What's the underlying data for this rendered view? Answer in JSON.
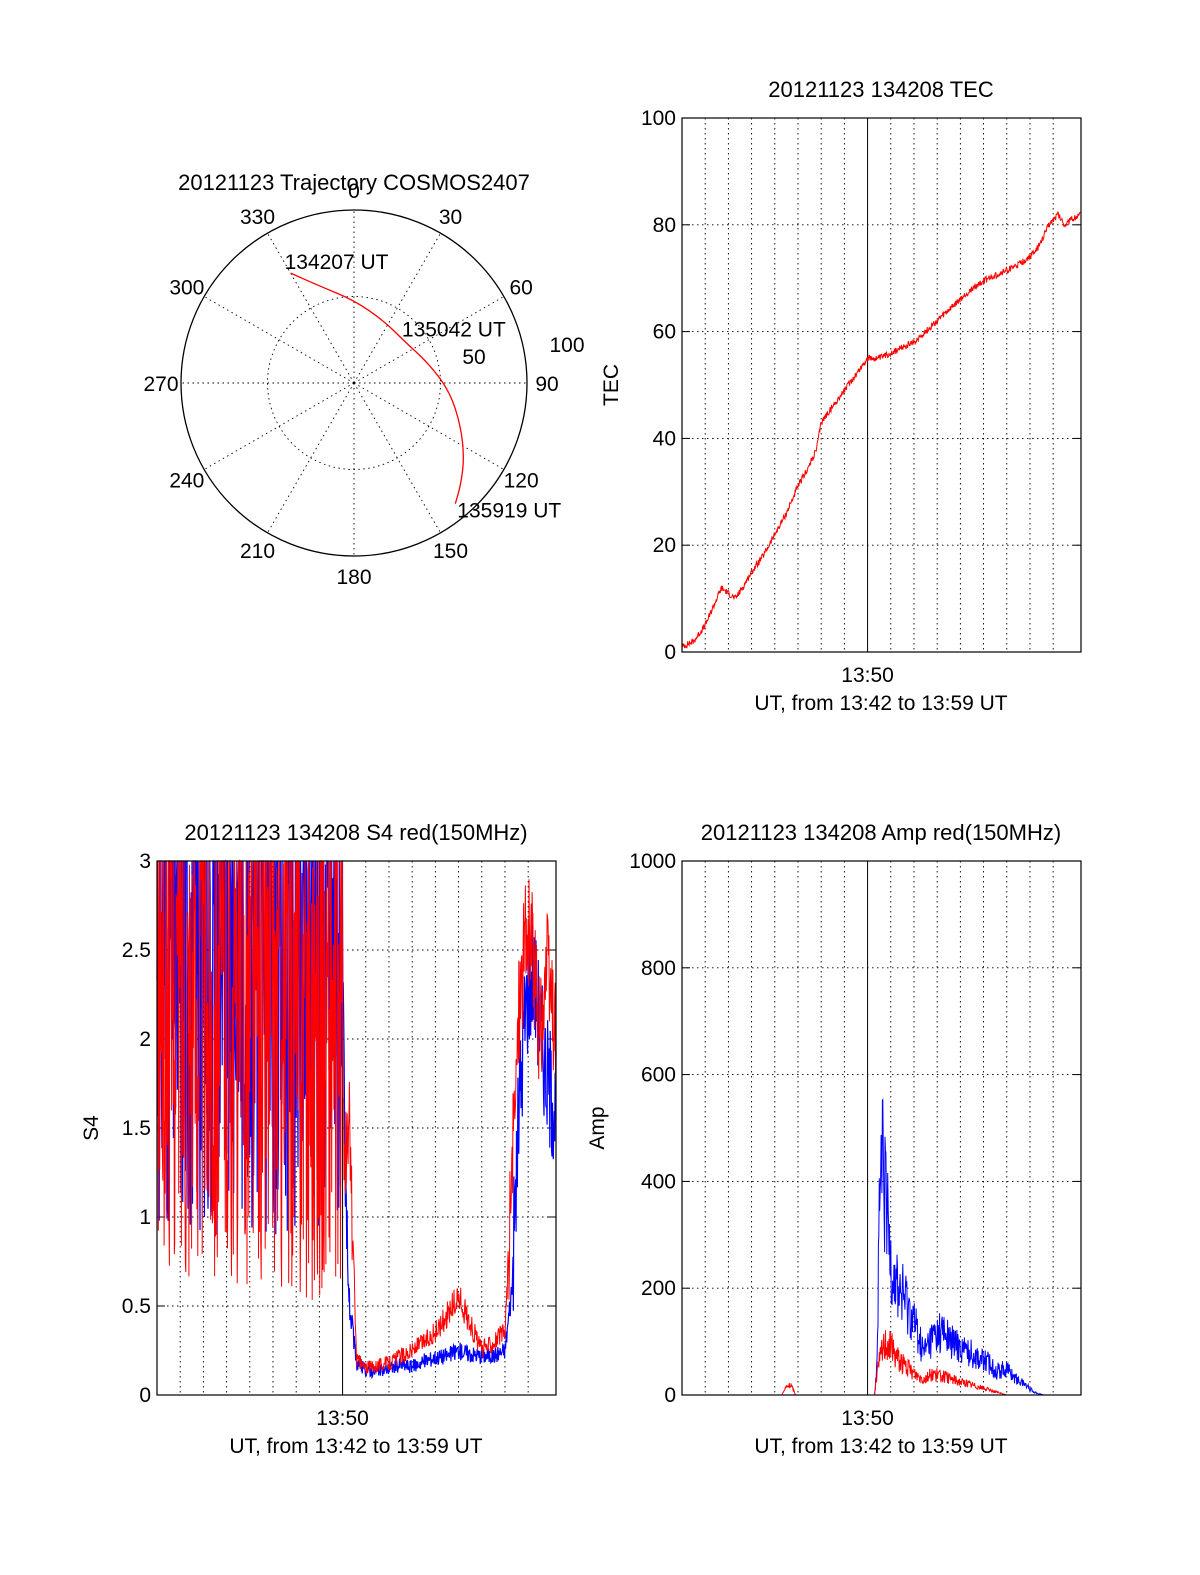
{
  "colors": {
    "red": "#ff0000",
    "blue": "#0000ff"
  },
  "chart_data": [
    {
      "id": "polar",
      "type": "polar-trajectory",
      "title": "20121123 Trajectory COSMOS2407",
      "azimuth_labels": [
        "0",
        "30",
        "60",
        "90",
        "120",
        "150",
        "180",
        "210",
        "240",
        "270",
        "300",
        "330"
      ],
      "ring_label": "50",
      "outer_ring_label": "100",
      "radius_max": 90,
      "track_points": [
        {
          "az": 330,
          "zen": 66
        },
        {
          "az": 340,
          "zen": 54
        },
        {
          "az": 0,
          "zen": 43
        },
        {
          "az": 25,
          "zen": 36
        },
        {
          "az": 50,
          "zen": 34
        },
        {
          "az": 75,
          "zen": 40
        },
        {
          "az": 95,
          "zen": 50
        },
        {
          "az": 112,
          "zen": 60
        },
        {
          "az": 125,
          "zen": 70
        },
        {
          "az": 134,
          "zen": 77
        },
        {
          "az": 140,
          "zen": 82
        }
      ],
      "annotations": [
        {
          "text": "134207 UT",
          "az": 330,
          "zen": 66
        },
        {
          "text": "135042 UT",
          "az": 63,
          "zen": 35
        },
        {
          "text": "135919 UT",
          "az": 140,
          "zen": 82
        }
      ]
    },
    {
      "id": "tec",
      "type": "line",
      "title": "20121123 134208 TEC",
      "xlabel": "UT, from 13:42 to 13:59 UT",
      "ylabel": "TEC",
      "xtick_label": "13:50",
      "xlim": [
        0,
        17.2
      ],
      "xtick_value": 8,
      "ylim": [
        0,
        100
      ],
      "yticks": [
        0,
        20,
        40,
        60,
        80,
        100
      ],
      "series": [
        {
          "color": "red",
          "x": [
            0,
            0.5,
            1,
            1.4,
            1.7,
            2.0,
            2.3,
            2.6,
            3.0,
            3.5,
            4.0,
            4.5,
            5.0,
            5.5,
            5.8,
            6.0,
            6.5,
            7.0,
            7.5,
            8.0,
            8.5,
            9.0,
            9.5,
            10.0,
            10.5,
            11.0,
            11.5,
            12.0,
            12.5,
            13.0,
            13.5,
            14.0,
            14.5,
            15.0,
            15.4,
            15.8,
            16.2,
            16.5,
            16.8,
            17.2
          ],
          "y": [
            1,
            2,
            5,
            9,
            12,
            11,
            10,
            12,
            15,
            18,
            22,
            26,
            31,
            35,
            38,
            43,
            46,
            49,
            52,
            55,
            55,
            56,
            57,
            58,
            60,
            62,
            64,
            66,
            68,
            69.5,
            70.5,
            71.5,
            72.5,
            74,
            76,
            80,
            82,
            80,
            81,
            82
          ]
        }
      ]
    },
    {
      "id": "s4",
      "type": "line",
      "title": "20121123 134208 S4 red(150MHz)",
      "xlabel": "UT, from 13:42 to 13:59 UT",
      "ylabel": "S4",
      "xtick_label": "13:50",
      "xlim": [
        0,
        17.2
      ],
      "xtick_value": 8,
      "ylim": [
        0,
        3
      ],
      "yticks": [
        0,
        0.5,
        1,
        1.5,
        2,
        2.5,
        3
      ],
      "ytick_labels": [
        "0",
        "0.5",
        "1",
        "1.5",
        "2",
        "2.5",
        "3"
      ],
      "series": [
        {
          "color": "blue",
          "x": [
            0,
            8.0,
            8.1,
            8.3,
            8.6,
            9.0,
            9.5,
            10.0,
            10.5,
            11.0,
            11.5,
            12.0,
            12.5,
            13.0,
            13.5,
            14.0,
            14.5,
            15.0,
            15.3,
            15.6,
            15.9,
            16.2,
            16.5,
            16.8,
            17.2
          ],
          "y": [
            2.5,
            2.5,
            1.1,
            0.5,
            0.18,
            0.14,
            0.13,
            0.15,
            0.17,
            0.16,
            0.19,
            0.21,
            0.22,
            0.25,
            0.23,
            0.22,
            0.22,
            0.25,
            0.6,
            1.6,
            2.2,
            2.4,
            2.1,
            1.8,
            1.6
          ]
        },
        {
          "color": "red",
          "x": [
            0,
            8.0,
            8.1,
            8.3,
            8.6,
            9.0,
            9.5,
            10.0,
            10.5,
            11.0,
            11.5,
            12.0,
            12.5,
            13.0,
            13.5,
            14.0,
            14.5,
            15.0,
            15.3,
            15.6,
            15.9,
            16.2,
            16.5,
            16.8,
            17.2
          ],
          "y": [
            2.3,
            2.1,
            1.2,
            1.5,
            0.2,
            0.15,
            0.17,
            0.18,
            0.22,
            0.25,
            0.3,
            0.35,
            0.45,
            0.55,
            0.4,
            0.25,
            0.3,
            0.35,
            1.2,
            2.2,
            2.6,
            2.5,
            2.0,
            2.4,
            2.0
          ]
        }
      ]
    },
    {
      "id": "amp",
      "type": "line",
      "title": "20121123 134208 Amp red(150MHz)",
      "xlabel": "UT, from 13:42 to 13:59 UT",
      "ylabel": "Amp",
      "xtick_label": "13:50",
      "xlim": [
        0,
        17.2
      ],
      "xtick_value": 8,
      "ylim": [
        0,
        1000
      ],
      "yticks": [
        0,
        200,
        400,
        600,
        800,
        1000
      ],
      "series": [
        {
          "color": "blue",
          "x": [
            0,
            8.3,
            8.4,
            8.5,
            8.6,
            8.8,
            9.0,
            9.3,
            9.6,
            10.0,
            10.4,
            10.8,
            11.2,
            11.6,
            12.0,
            12.4,
            12.8,
            13.2,
            13.6,
            14.0,
            14.4,
            14.8,
            15.2,
            15.6,
            17.2
          ],
          "y": [
            0,
            0,
            50,
            300,
            450,
            350,
            260,
            200,
            180,
            140,
            80,
            110,
            120,
            100,
            90,
            80,
            70,
            60,
            45,
            50,
            30,
            20,
            5,
            0,
            0
          ]
        },
        {
          "color": "red",
          "x": [
            0,
            4.3,
            4.5,
            4.7,
            4.9,
            8.3,
            8.4,
            8.6,
            8.8,
            9.0,
            9.3,
            9.6,
            10.0,
            10.4,
            10.8,
            11.2,
            11.6,
            12.0,
            12.4,
            12.8,
            13.2,
            13.6,
            14.0,
            17.2
          ],
          "y": [
            0,
            0,
            15,
            18,
            0,
            0,
            40,
            80,
            100,
            90,
            70,
            55,
            40,
            30,
            40,
            35,
            30,
            25,
            20,
            15,
            10,
            5,
            0,
            0
          ]
        }
      ]
    }
  ]
}
